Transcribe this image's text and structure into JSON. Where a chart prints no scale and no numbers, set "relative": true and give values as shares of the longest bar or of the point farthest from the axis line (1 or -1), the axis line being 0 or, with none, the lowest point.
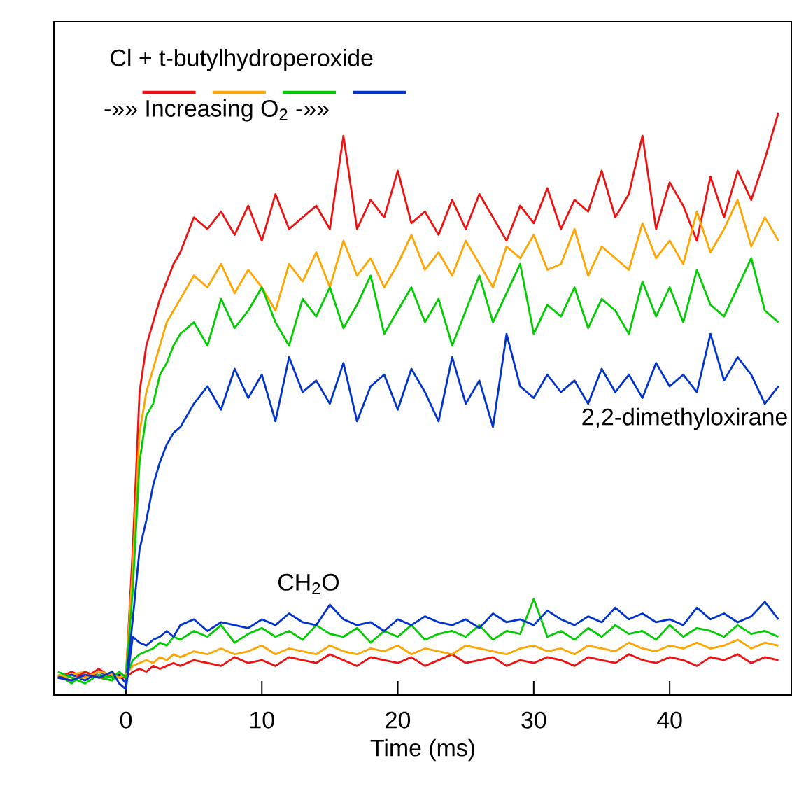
{
  "chart_data": {
    "type": "line",
    "relative": true,
    "legend_title": "Cl + t-butylhydroperoxide",
    "xlabel": "Time (ms)",
    "xlim": [
      -5.3,
      49
    ],
    "xticks": [
      0,
      10,
      20,
      30,
      40
    ],
    "line_style": "solid",
    "annotations": [
      "-»» Increasing O$_{2}$ -»»",
      "2,2-dimethyloxirane",
      "CH$_{2}$O"
    ],
    "x": [
      -5,
      -4,
      -3,
      -2,
      -1,
      -0.5,
      0,
      0.5,
      1,
      1.5,
      2,
      2.5,
      3,
      3.5,
      4,
      5,
      6,
      7,
      8,
      9,
      10,
      11,
      12,
      13,
      14,
      15,
      16,
      17,
      18,
      19,
      20,
      21,
      22,
      23,
      24,
      25,
      26,
      27,
      28,
      29,
      30,
      31,
      32,
      33,
      34,
      35,
      36,
      37,
      38,
      39,
      40,
      41,
      42,
      43,
      44,
      45,
      46,
      47,
      48
    ],
    "series": [
      {
        "color": "#ee1111",
        "values": [
          0.03,
          0.04,
          0.03,
          0.045,
          0.03,
          0.035,
          0.03,
          0.25,
          0.52,
          0.6,
          0.64,
          0.68,
          0.71,
          0.74,
          0.76,
          0.82,
          0.8,
          0.83,
          0.79,
          0.84,
          0.78,
          0.86,
          0.8,
          0.82,
          0.84,
          0.8,
          0.96,
          0.8,
          0.85,
          0.82,
          0.9,
          0.81,
          0.83,
          0.79,
          0.85,
          0.8,
          0.86,
          0.82,
          0.78,
          0.84,
          0.81,
          0.87,
          0.8,
          0.85,
          0.83,
          0.9,
          0.82,
          0.86,
          0.96,
          0.8,
          0.88,
          0.84,
          0.78,
          0.89,
          0.82,
          0.9,
          0.85,
          0.92,
          1.0
        ]
      },
      {
        "color": "#ffa500",
        "values": [
          0.03,
          0.035,
          0.04,
          0.03,
          0.04,
          0.03,
          0.035,
          0.22,
          0.45,
          0.52,
          0.56,
          0.6,
          0.64,
          0.66,
          0.68,
          0.72,
          0.7,
          0.74,
          0.69,
          0.73,
          0.7,
          0.66,
          0.74,
          0.71,
          0.76,
          0.7,
          0.78,
          0.72,
          0.75,
          0.7,
          0.74,
          0.79,
          0.73,
          0.76,
          0.72,
          0.78,
          0.74,
          0.7,
          0.77,
          0.75,
          0.79,
          0.73,
          0.74,
          0.8,
          0.72,
          0.77,
          0.75,
          0.73,
          0.81,
          0.75,
          0.78,
          0.74,
          0.83,
          0.76,
          0.8,
          0.85,
          0.77,
          0.82,
          0.78
        ]
      },
      {
        "color": "#00cc00",
        "values": [
          0.035,
          0.02,
          0.04,
          0.03,
          0.025,
          0.04,
          0.03,
          0.18,
          0.4,
          0.48,
          0.5,
          0.55,
          0.57,
          0.6,
          0.62,
          0.64,
          0.6,
          0.68,
          0.63,
          0.66,
          0.7,
          0.64,
          0.6,
          0.68,
          0.65,
          0.7,
          0.63,
          0.67,
          0.72,
          0.62,
          0.66,
          0.7,
          0.64,
          0.68,
          0.6,
          0.66,
          0.72,
          0.64,
          0.69,
          0.74,
          0.62,
          0.67,
          0.65,
          0.7,
          0.63,
          0.68,
          0.66,
          0.62,
          0.71,
          0.65,
          0.7,
          0.64,
          0.73,
          0.67,
          0.65,
          0.7,
          0.75,
          0.66,
          0.64
        ]
      },
      {
        "color": "#0033cc",
        "values": [
          0.03,
          0.035,
          0.025,
          0.04,
          0.03,
          0.035,
          0.02,
          0.13,
          0.25,
          0.3,
          0.36,
          0.4,
          0.43,
          0.45,
          0.46,
          0.5,
          0.53,
          0.49,
          0.56,
          0.51,
          0.55,
          0.47,
          0.58,
          0.52,
          0.54,
          0.5,
          0.57,
          0.47,
          0.53,
          0.55,
          0.49,
          0.56,
          0.52,
          0.47,
          0.58,
          0.5,
          0.54,
          0.46,
          0.62,
          0.53,
          0.51,
          0.55,
          0.52,
          0.54,
          0.5,
          0.56,
          0.52,
          0.55,
          0.51,
          0.57,
          0.53,
          0.55,
          0.52,
          0.62,
          0.54,
          0.58,
          0.55,
          0.5,
          0.53
        ]
      },
      {
        "color": "#ee1111",
        "values": [
          0.03,
          0.025,
          0.04,
          0.03,
          0.035,
          0.03,
          0.03,
          0.04,
          0.045,
          0.04,
          0.05,
          0.045,
          0.05,
          0.055,
          0.05,
          0.06,
          0.055,
          0.05,
          0.065,
          0.055,
          0.06,
          0.05,
          0.065,
          0.06,
          0.055,
          0.07,
          0.06,
          0.05,
          0.065,
          0.06,
          0.055,
          0.065,
          0.05,
          0.06,
          0.07,
          0.055,
          0.06,
          0.065,
          0.05,
          0.06,
          0.055,
          0.065,
          0.06,
          0.05,
          0.065,
          0.06,
          0.055,
          0.07,
          0.06,
          0.055,
          0.065,
          0.06,
          0.05,
          0.065,
          0.06,
          0.07,
          0.055,
          0.065,
          0.06
        ]
      },
      {
        "color": "#ffa500",
        "values": [
          0.035,
          0.03,
          0.03,
          0.04,
          0.035,
          0.03,
          0.035,
          0.05,
          0.055,
          0.06,
          0.055,
          0.065,
          0.06,
          0.07,
          0.065,
          0.075,
          0.07,
          0.08,
          0.07,
          0.075,
          0.085,
          0.07,
          0.08,
          0.075,
          0.07,
          0.085,
          0.075,
          0.07,
          0.08,
          0.075,
          0.085,
          0.07,
          0.08,
          0.075,
          0.07,
          0.085,
          0.08,
          0.075,
          0.07,
          0.08,
          0.085,
          0.075,
          0.08,
          0.07,
          0.085,
          0.08,
          0.075,
          0.09,
          0.08,
          0.075,
          0.085,
          0.08,
          0.09,
          0.08,
          0.085,
          0.095,
          0.08,
          0.09,
          0.085
        ]
      },
      {
        "color": "#00cc00",
        "values": [
          0.04,
          0.03,
          0.02,
          0.035,
          0.03,
          0.04,
          0.03,
          0.06,
          0.07,
          0.075,
          0.08,
          0.09,
          0.085,
          0.1,
          0.095,
          0.11,
          0.1,
          0.12,
          0.09,
          0.105,
          0.115,
          0.1,
          0.11,
          0.095,
          0.12,
          0.105,
          0.1,
          0.115,
          0.09,
          0.11,
          0.1,
          0.12,
          0.095,
          0.105,
          0.11,
          0.1,
          0.12,
          0.095,
          0.11,
          0.105,
          0.165,
          0.1,
          0.11,
          0.095,
          0.115,
          0.1,
          0.12,
          0.105,
          0.11,
          0.095,
          0.12,
          0.1,
          0.115,
          0.11,
          0.1,
          0.12,
          0.105,
          0.11,
          0.1
        ]
      },
      {
        "color": "#0033cc",
        "values": [
          0.03,
          0.025,
          0.035,
          0.03,
          0.04,
          0.02,
          0.01,
          0.1,
          0.09,
          0.085,
          0.095,
          0.1,
          0.11,
          0.1,
          0.12,
          0.13,
          0.11,
          0.125,
          0.12,
          0.115,
          0.13,
          0.12,
          0.14,
          0.125,
          0.12,
          0.155,
          0.13,
          0.12,
          0.125,
          0.11,
          0.13,
          0.12,
          0.135,
          0.125,
          0.12,
          0.13,
          0.115,
          0.14,
          0.125,
          0.13,
          0.12,
          0.145,
          0.13,
          0.12,
          0.135,
          0.125,
          0.15,
          0.13,
          0.14,
          0.125,
          0.13,
          0.12,
          0.15,
          0.13,
          0.14,
          0.125,
          0.135,
          0.16,
          0.13
        ]
      }
    ]
  }
}
